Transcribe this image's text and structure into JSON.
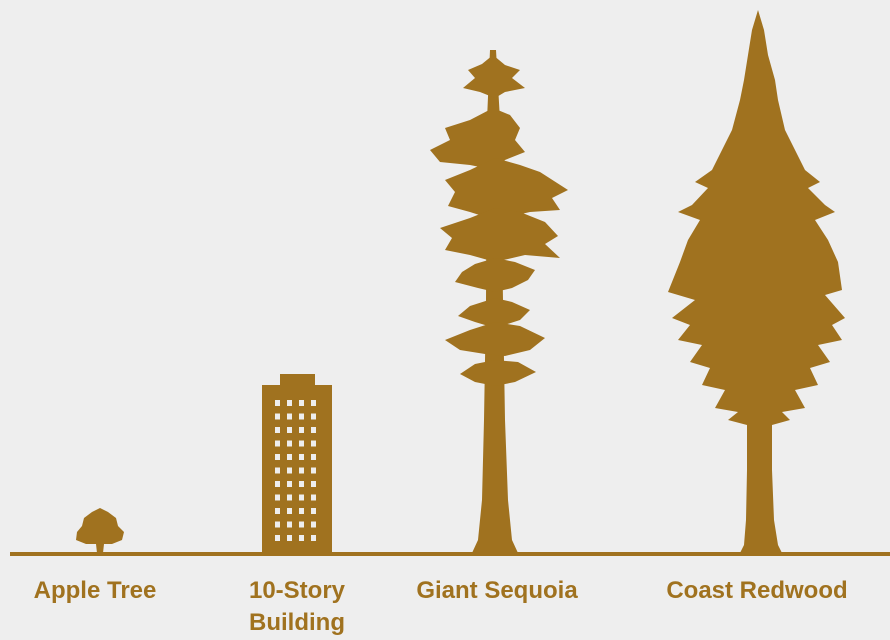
{
  "items": [
    {
      "label": [
        "Apple Tree"
      ]
    },
    {
      "label": [
        "10-Story",
        "Building"
      ]
    },
    {
      "label": [
        "Giant Sequoia"
      ]
    },
    {
      "label": [
        "Coast Redwood"
      ]
    }
  ]
}
